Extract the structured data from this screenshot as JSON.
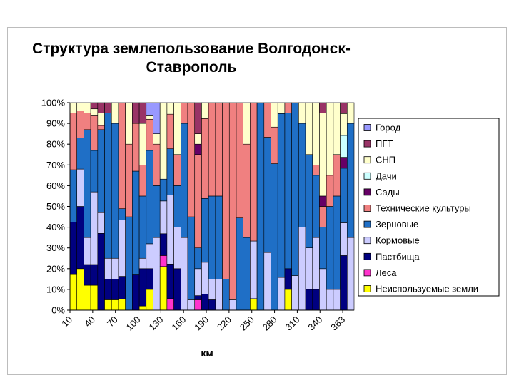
{
  "chart_data": {
    "type": "bar",
    "stacked": "percent",
    "title_lines": [
      "Структура землепользование Волгодонск-",
      "Ставрополь"
    ],
    "xlabel": "км",
    "ylabel": "",
    "ylim": [
      0,
      100
    ],
    "y_ticks": [
      "0%",
      "10%",
      "20%",
      "30%",
      "40%",
      "50%",
      "60%",
      "70%",
      "80%",
      "90%",
      "100%"
    ],
    "x_tick_labels": [
      "10",
      "40",
      "70",
      "100",
      "130",
      "160",
      "190",
      "220",
      "250",
      "280",
      "310",
      "340",
      "363"
    ],
    "legend_position": "right",
    "legend_order": [
      "Город",
      "ПГТ",
      "СНП",
      "Дачи",
      "Сады",
      "Технические культуры",
      "Зерновые",
      "Кормовые",
      "Пастбища",
      "Леса",
      "Неиспользуемые земли"
    ],
    "series": [
      {
        "name": "Неиспользуемые земли",
        "color": "#ffff00",
        "values": [
          17,
          20,
          12,
          12,
          0,
          5,
          5,
          5,
          0,
          0,
          2,
          10,
          0,
          20,
          0,
          0,
          0,
          0,
          0,
          0,
          0,
          0,
          0,
          0,
          0,
          0,
          5,
          0,
          0,
          0,
          0,
          10,
          0,
          0,
          0,
          0,
          0,
          0,
          0,
          0,
          0
        ]
      },
      {
        "name": "Леса",
        "color": "#ff33cc",
        "values": [
          0,
          0,
          0,
          0,
          0,
          0,
          0,
          0,
          0,
          0,
          0,
          0,
          0,
          5,
          5,
          0,
          0,
          0,
          5,
          0,
          0,
          0,
          0,
          0,
          0,
          0,
          0,
          0,
          0,
          0,
          0,
          0,
          0,
          0,
          0,
          0,
          0,
          0,
          0,
          0,
          0
        ]
      },
      {
        "name": "Пастбища",
        "color": "#000080",
        "values": [
          25,
          30,
          10,
          10,
          37,
          10,
          10,
          10,
          0,
          17,
          18,
          10,
          0,
          10,
          15,
          20,
          0,
          0,
          2,
          5,
          5,
          0,
          0,
          0,
          0,
          0,
          0,
          0,
          0,
          0,
          0,
          10,
          0,
          0,
          10,
          10,
          0,
          0,
          0,
          25,
          0
        ]
      },
      {
        "name": "Кормовые",
        "color": "#ccccff",
        "values": [
          0,
          18,
          13,
          35,
          10,
          10,
          10,
          25,
          0,
          0,
          5,
          12,
          35,
          15,
          30,
          20,
          35,
          5,
          13,
          10,
          10,
          15,
          0,
          5,
          0,
          0,
          25,
          0,
          25,
          0,
          15,
          0,
          15,
          40,
          20,
          25,
          20,
          10,
          10,
          15,
          35
        ]
      },
      {
        "name": "Зерновые",
        "color": "#1f6fc6",
        "values": [
          25,
          15,
          52,
          20,
          40,
          70,
          65,
          5,
          45,
          50,
          30,
          45,
          25,
          10,
          20,
          20,
          55,
          40,
          10,
          20,
          40,
          40,
          15,
          0,
          40,
          35,
          0,
          50,
          50,
          60,
          75,
          75,
          75,
          50,
          45,
          30,
          20,
          40,
          45,
          25,
          55
        ]
      },
      {
        "name": "Технические культуры",
        "color": "#f08080",
        "values": [
          27,
          13,
          8,
          17,
          2,
          0,
          0,
          47,
          35,
          23,
          15,
          15,
          20,
          0,
          15,
          15,
          10,
          55,
          45,
          25,
          45,
          45,
          85,
          95,
          50,
          45,
          60,
          0,
          15,
          15,
          0,
          5,
          0,
          0,
          0,
          5,
          10,
          15,
          20,
          0,
          0
        ]
      },
      {
        "name": "Сады",
        "color": "#660066",
        "values": [
          0,
          0,
          0,
          0,
          0,
          0,
          0,
          0,
          0,
          0,
          0,
          0,
          0,
          0,
          0,
          0,
          0,
          0,
          5,
          0,
          0,
          0,
          0,
          0,
          0,
          0,
          0,
          0,
          0,
          0,
          0,
          0,
          0,
          0,
          0,
          0,
          5,
          0,
          0,
          5,
          0
        ]
      },
      {
        "name": "Дачи",
        "color": "#ccffff",
        "values": [
          0,
          0,
          0,
          0,
          0,
          0,
          0,
          0,
          0,
          0,
          0,
          0,
          0,
          0,
          0,
          0,
          0,
          0,
          0,
          0,
          0,
          0,
          0,
          0,
          0,
          0,
          0,
          0,
          0,
          0,
          0,
          0,
          0,
          0,
          0,
          0,
          0,
          0,
          0,
          10,
          0
        ]
      },
      {
        "name": "СНП",
        "color": "#ffffcc",
        "values": [
          5,
          4,
          5,
          3,
          6,
          0,
          10,
          0,
          20,
          0,
          20,
          2,
          5,
          35,
          5,
          25,
          0,
          0,
          5,
          5,
          0,
          0,
          0,
          0,
          0,
          20,
          0,
          0,
          0,
          10,
          5,
          0,
          0,
          10,
          25,
          30,
          40,
          35,
          25,
          10,
          10
        ]
      },
      {
        "name": "ПГТ",
        "color": "#993366",
        "values": [
          0,
          0,
          0,
          3,
          5,
          5,
          0,
          0,
          0,
          10,
          10,
          0,
          0,
          0,
          0,
          0,
          0,
          0,
          15,
          0,
          0,
          0,
          0,
          0,
          0,
          0,
          0,
          0,
          0,
          0,
          0,
          0,
          0,
          0,
          0,
          0,
          5,
          0,
          0,
          5,
          0
        ]
      },
      {
        "name": "Город",
        "color": "#9999ff",
        "values": [
          0,
          0,
          0,
          0,
          0,
          0,
          0,
          0,
          0,
          0,
          0,
          6,
          15,
          0,
          0,
          0,
          0,
          0,
          0,
          0,
          0,
          0,
          0,
          0,
          0,
          0,
          0,
          0,
          0,
          0,
          0,
          0,
          0,
          0,
          0,
          0,
          0,
          0,
          0,
          0,
          0
        ]
      }
    ]
  }
}
